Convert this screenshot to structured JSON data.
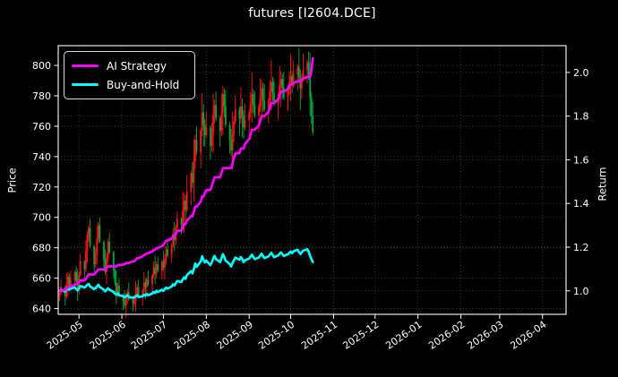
{
  "title": "futures [I2604.DCE]",
  "colors": {
    "background": "#000000",
    "foreground": "#ffffff",
    "grid": "#474747",
    "candle_up": "#ff1414",
    "candle_down": "#00a83e",
    "strategy_line": "#ff00ff",
    "buyhold_line": "#00ffff"
  },
  "legend": {
    "items": [
      {
        "label": "AI Strategy",
        "color": "#ff00ff"
      },
      {
        "label": "Buy-and-Hold",
        "color": "#00ffff"
      }
    ]
  },
  "chart_data": {
    "type": "candlestick+line",
    "title": "futures [I2604.DCE]",
    "grid": true,
    "legend_position": "upper left",
    "left_axis": {
      "label": "Price",
      "ticks": [
        640,
        660,
        680,
        700,
        720,
        740,
        760,
        780,
        800
      ],
      "range": [
        636.2,
        813.0
      ]
    },
    "right_axis": {
      "label": "Return",
      "ticks": [
        1.0,
        1.2,
        1.4,
        1.6,
        1.8,
        2.0
      ],
      "range": [
        0.8925,
        2.1225
      ]
    },
    "x_axis": {
      "tick_labels": [
        "2025-05",
        "2025-06",
        "2025-07",
        "2025-08",
        "2025-09",
        "2025-10",
        "2025-11",
        "2025-12",
        "2026-01",
        "2026-02",
        "2026-03",
        "2026-04"
      ],
      "range": [
        "2025-04-16",
        "2026-04-18"
      ],
      "tick_rotation": -35
    },
    "candles": {
      "start_date": "2025-04-17",
      "frequency": "trading-days",
      "open0": 648,
      "wick_up": [
        2,
        5,
        1,
        7,
        3,
        2,
        6,
        1,
        4,
        8
      ],
      "wick_down": [
        3,
        1,
        6,
        2,
        8,
        4,
        1,
        5,
        2,
        7
      ],
      "wick_scale_above_700": 1.8,
      "close": [
        650,
        654,
        648,
        656,
        661,
        655,
        659,
        664,
        658,
        652,
        662,
        671,
        666,
        678,
        688,
        693,
        681,
        669,
        676,
        686,
        695,
        684,
        672,
        664,
        674,
        684,
        677,
        665,
        657,
        650,
        655,
        649,
        645,
        642,
        647,
        651,
        646,
        643,
        645,
        650,
        654,
        648,
        652,
        657,
        654,
        659,
        656,
        662,
        667,
        663,
        669,
        665,
        671,
        667,
        673,
        679,
        675,
        682,
        689,
        685,
        693,
        699,
        695,
        704,
        711,
        705,
        717,
        729,
        723,
        737,
        751,
        743,
        757,
        769,
        761,
        754,
        759,
        747,
        755,
        767,
        774,
        765,
        757,
        769,
        781,
        773,
        761,
        751,
        744,
        755,
        763,
        771,
        765,
        773,
        767,
        759,
        764,
        769,
        775,
        781,
        774,
        767,
        773,
        779,
        785,
        777,
        771,
        777,
        783,
        789,
        782,
        775,
        781,
        787,
        791,
        785,
        779,
        784,
        789,
        793,
        787,
        794,
        799,
        792,
        785,
        791,
        797,
        802,
        794,
        779,
        767,
        756
      ]
    },
    "series": [
      {
        "name": "AI Strategy",
        "axis": "right",
        "color": "#ff00ff",
        "values": [
          1.0,
          1.0,
          1.005,
          1.01,
          1.015,
          1.02,
          1.02,
          1.028,
          1.03,
          1.035,
          1.04,
          1.048,
          1.048,
          1.055,
          1.065,
          1.075,
          1.075,
          1.075,
          1.082,
          1.09,
          1.098,
          1.098,
          1.098,
          1.098,
          1.105,
          1.112,
          1.112,
          1.112,
          1.112,
          1.112,
          1.118,
          1.118,
          1.12,
          1.122,
          1.128,
          1.128,
          1.128,
          1.135,
          1.135,
          1.142,
          1.15,
          1.15,
          1.158,
          1.165,
          1.165,
          1.172,
          1.172,
          1.18,
          1.188,
          1.188,
          1.196,
          1.196,
          1.205,
          1.212,
          1.22,
          1.23,
          1.23,
          1.24,
          1.25,
          1.25,
          1.262,
          1.275,
          1.275,
          1.29,
          1.305,
          1.305,
          1.322,
          1.342,
          1.342,
          1.362,
          1.385,
          1.385,
          1.408,
          1.432,
          1.432,
          1.448,
          1.462,
          1.462,
          1.48,
          1.5,
          1.52,
          1.52,
          1.52,
          1.54,
          1.562,
          1.562,
          1.562,
          1.562,
          1.562,
          1.585,
          1.608,
          1.63,
          1.63,
          1.652,
          1.652,
          1.652,
          1.672,
          1.695,
          1.715,
          1.738,
          1.738,
          1.738,
          1.758,
          1.778,
          1.8,
          1.8,
          1.8,
          1.82,
          1.84,
          1.86,
          1.86,
          1.86,
          1.878,
          1.895,
          1.912,
          1.912,
          1.912,
          1.925,
          1.94,
          1.945,
          1.945,
          1.952,
          1.96,
          1.96,
          1.96,
          1.966,
          1.972,
          1.98,
          1.98,
          1.98,
          2.01,
          2.065
        ]
      },
      {
        "name": "Buy-and-Hold",
        "axis": "right",
        "color": "#00ffff",
        "values": [
          1.0,
          1.003,
          0.997,
          1.005,
          1.012,
          1.006,
          1.01,
          1.015,
          1.008,
          1.002,
          1.01,
          1.022,
          1.015,
          1.02,
          1.028,
          1.032,
          1.02,
          1.008,
          1.012,
          1.02,
          1.028,
          1.018,
          1.005,
          0.998,
          1.005,
          1.012,
          1.005,
          0.995,
          0.988,
          0.982,
          0.988,
          0.98,
          0.975,
          0.97,
          0.975,
          0.98,
          0.972,
          0.968,
          0.97,
          0.975,
          0.98,
          0.972,
          0.975,
          0.982,
          0.978,
          0.985,
          0.98,
          0.988,
          0.995,
          0.99,
          1.0,
          0.995,
          1.005,
          1.0,
          1.008,
          1.015,
          1.01,
          1.02,
          1.03,
          1.025,
          1.035,
          1.045,
          1.04,
          1.052,
          1.062,
          1.055,
          1.072,
          1.09,
          1.08,
          1.1,
          1.125,
          1.11,
          1.135,
          1.158,
          1.142,
          1.13,
          1.138,
          1.118,
          1.13,
          1.148,
          1.16,
          1.145,
          1.132,
          1.15,
          1.168,
          1.155,
          1.138,
          1.122,
          1.112,
          1.128,
          1.14,
          1.152,
          1.142,
          1.155,
          1.145,
          1.132,
          1.14,
          1.148,
          1.157,
          1.165,
          1.155,
          1.145,
          1.153,
          1.162,
          1.17,
          1.158,
          1.15,
          1.158,
          1.166,
          1.174,
          1.164,
          1.154,
          1.162,
          1.17,
          1.176,
          1.168,
          1.16,
          1.167,
          1.174,
          1.18,
          1.172,
          1.181,
          1.188,
          1.178,
          1.168,
          1.176,
          1.184,
          1.19,
          1.18,
          1.16,
          1.145,
          1.132
        ]
      }
    ]
  }
}
